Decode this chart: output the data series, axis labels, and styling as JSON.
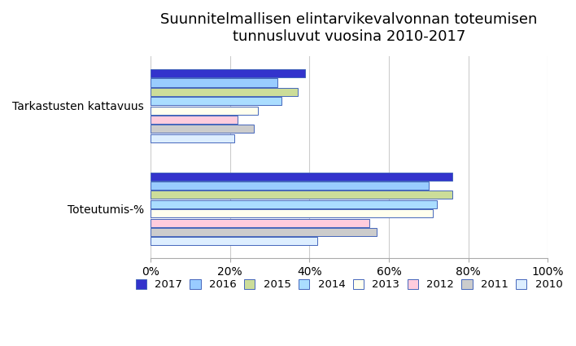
{
  "title": "Suunnitelmallisen elintarvikevalvonnan toteumisen\ntunnusluvut vuosina 2010-2017",
  "categories": [
    "Tarkastusten kattavuus",
    "Toteutumis-%"
  ],
  "years": [
    "2017",
    "2016",
    "2015",
    "2014",
    "2013",
    "2012",
    "2011",
    "2010"
  ],
  "values": {
    "Tarkastusten kattavuus": [
      0.39,
      0.32,
      0.37,
      0.33,
      0.27,
      0.22,
      0.26,
      0.21
    ],
    "Toteutumis-%": [
      0.76,
      0.7,
      0.76,
      0.72,
      0.71,
      0.55,
      0.57,
      0.42
    ]
  },
  "colors": {
    "2017": "#3333cc",
    "2016": "#99ccff",
    "2015": "#ccdd99",
    "2014": "#aaddff",
    "2013": "#ffffee",
    "2012": "#ffccdd",
    "2011": "#cccccc",
    "2010": "#ddeeff"
  },
  "bar_edge_color": "#4466bb",
  "xlim": [
    0,
    1.0
  ],
  "xticks": [
    0,
    0.2,
    0.4,
    0.6,
    0.8,
    1.0
  ],
  "xticklabels": [
    "0%",
    "20%",
    "40%",
    "60%",
    "80%",
    "100%"
  ],
  "background_color": "#ffffff",
  "title_fontsize": 13,
  "axis_fontsize": 10,
  "legend_fontsize": 9.5
}
